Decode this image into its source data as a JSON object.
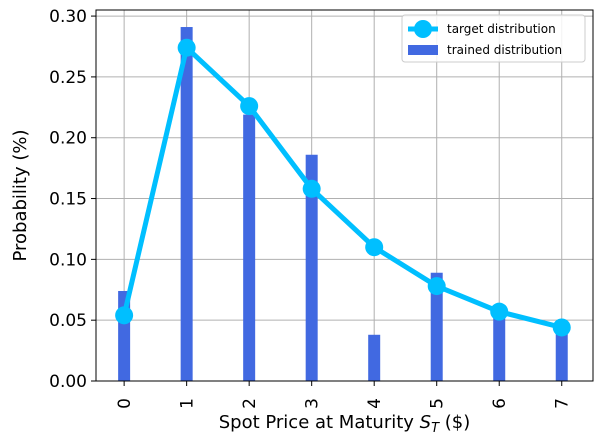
{
  "chart_data": {
    "type": "bar",
    "x": [
      0,
      1,
      2,
      3,
      4,
      5,
      6,
      7
    ],
    "x_tick_labels": [
      "0",
      "1",
      "2",
      "3",
      "4",
      "5",
      "6",
      "7"
    ],
    "y_ticks": [
      0.0,
      0.05,
      0.1,
      0.15,
      0.2,
      0.25,
      0.3
    ],
    "y_tick_labels": [
      "0.00",
      "0.05",
      "0.10",
      "0.15",
      "0.20",
      "0.25",
      "0.30"
    ],
    "xlim": [
      -0.45,
      7.5
    ],
    "ylim": [
      0,
      0.305
    ],
    "xlabel": "Spot Price at Maturity S_T ($)",
    "ylabel": "Probability (%)",
    "grid": true,
    "legend_position": "top-right",
    "series": [
      {
        "name": "target distribution",
        "type": "line",
        "color": "#00bfff",
        "values": [
          0.054,
          0.274,
          0.226,
          0.158,
          0.11,
          0.078,
          0.057,
          0.044
        ]
      },
      {
        "name": "trained distribution",
        "type": "bar",
        "color": "#4169e1",
        "values": [
          0.074,
          0.291,
          0.219,
          0.186,
          0.038,
          0.089,
          0.057,
          0.043
        ]
      }
    ]
  }
}
